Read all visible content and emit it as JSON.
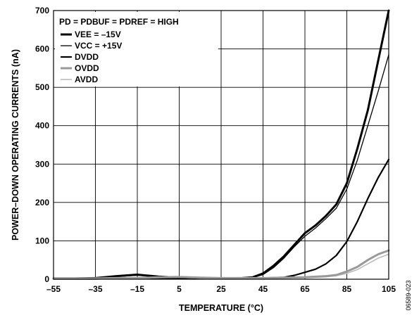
{
  "chart_data": {
    "type": "line",
    "annotation": "PD = PDBUF = PDREF = HIGH",
    "xlabel": "TEMPERATURE (°C)",
    "ylabel": "POWER–DOWN OPERATING CURRENTS (nA)",
    "xlim": [
      -55,
      105
    ],
    "ylim": [
      0,
      700
    ],
    "x_ticks": [
      "–55",
      "–35",
      "–15",
      "5",
      "25",
      "45",
      "65",
      "85",
      "105"
    ],
    "y_ticks": [
      "0",
      "100",
      "200",
      "300",
      "400",
      "500",
      "600",
      "700"
    ],
    "grid": true,
    "legend_position": "top-left",
    "series": [
      {
        "name": "VEE = –15V",
        "color": "#000000",
        "width": 3.0,
        "points": [
          [
            -55,
            2
          ],
          [
            -45,
            2
          ],
          [
            -35,
            3
          ],
          [
            -25,
            8
          ],
          [
            -15,
            12
          ],
          [
            -5,
            7
          ],
          [
            5,
            4
          ],
          [
            15,
            2
          ],
          [
            25,
            2
          ],
          [
            35,
            3
          ],
          [
            40,
            5
          ],
          [
            45,
            15
          ],
          [
            50,
            35
          ],
          [
            55,
            60
          ],
          [
            60,
            90
          ],
          [
            65,
            120
          ],
          [
            70,
            140
          ],
          [
            75,
            165
          ],
          [
            80,
            195
          ],
          [
            85,
            250
          ],
          [
            90,
            340
          ],
          [
            95,
            440
          ],
          [
            100,
            570
          ],
          [
            105,
            700
          ]
        ]
      },
      {
        "name": "VCC = +15V",
        "color": "#000000",
        "width": 1.3,
        "points": [
          [
            -55,
            2
          ],
          [
            -45,
            2
          ],
          [
            -35,
            3
          ],
          [
            -25,
            7
          ],
          [
            -15,
            10
          ],
          [
            -5,
            6
          ],
          [
            5,
            3
          ],
          [
            15,
            2
          ],
          [
            25,
            2
          ],
          [
            35,
            3
          ],
          [
            40,
            4
          ],
          [
            45,
            12
          ],
          [
            50,
            30
          ],
          [
            55,
            55
          ],
          [
            60,
            85
          ],
          [
            65,
            112
          ],
          [
            70,
            133
          ],
          [
            75,
            158
          ],
          [
            80,
            185
          ],
          [
            85,
            235
          ],
          [
            90,
            310
          ],
          [
            95,
            400
          ],
          [
            100,
            490
          ],
          [
            105,
            585
          ]
        ]
      },
      {
        "name": "DVDD",
        "color": "#000000",
        "width": 2.2,
        "points": [
          [
            -55,
            1
          ],
          [
            -45,
            1
          ],
          [
            -35,
            1
          ],
          [
            -25,
            2
          ],
          [
            -15,
            2
          ],
          [
            -5,
            2
          ],
          [
            5,
            2
          ],
          [
            15,
            2
          ],
          [
            25,
            2
          ],
          [
            35,
            2
          ],
          [
            45,
            3
          ],
          [
            55,
            5
          ],
          [
            60,
            10
          ],
          [
            65,
            18
          ],
          [
            70,
            26
          ],
          [
            75,
            40
          ],
          [
            80,
            62
          ],
          [
            85,
            98
          ],
          [
            90,
            150
          ],
          [
            95,
            210
          ],
          [
            100,
            265
          ],
          [
            105,
            312
          ]
        ]
      },
      {
        "name": "OVDD",
        "color": "#999999",
        "width": 3.0,
        "points": [
          [
            -55,
            2
          ],
          [
            -45,
            2
          ],
          [
            -35,
            2
          ],
          [
            -25,
            3
          ],
          [
            -15,
            3
          ],
          [
            -5,
            5
          ],
          [
            5,
            6
          ],
          [
            15,
            4
          ],
          [
            25,
            3
          ],
          [
            35,
            3
          ],
          [
            45,
            3
          ],
          [
            55,
            4
          ],
          [
            65,
            5
          ],
          [
            75,
            8
          ],
          [
            80,
            11
          ],
          [
            85,
            20
          ],
          [
            90,
            32
          ],
          [
            95,
            50
          ],
          [
            100,
            65
          ],
          [
            105,
            75
          ]
        ]
      },
      {
        "name": "AVDD",
        "color": "#bbbbbb",
        "width": 1.6,
        "points": [
          [
            -55,
            1
          ],
          [
            -45,
            1
          ],
          [
            -35,
            1
          ],
          [
            -25,
            2
          ],
          [
            -15,
            2
          ],
          [
            -5,
            4
          ],
          [
            5,
            5
          ],
          [
            15,
            3
          ],
          [
            25,
            2
          ],
          [
            35,
            2
          ],
          [
            45,
            2
          ],
          [
            55,
            3
          ],
          [
            65,
            4
          ],
          [
            75,
            6
          ],
          [
            80,
            9
          ],
          [
            85,
            15
          ],
          [
            90,
            25
          ],
          [
            95,
            40
          ],
          [
            100,
            55
          ],
          [
            105,
            65
          ]
        ]
      }
    ]
  },
  "figure_id": "06589-023"
}
